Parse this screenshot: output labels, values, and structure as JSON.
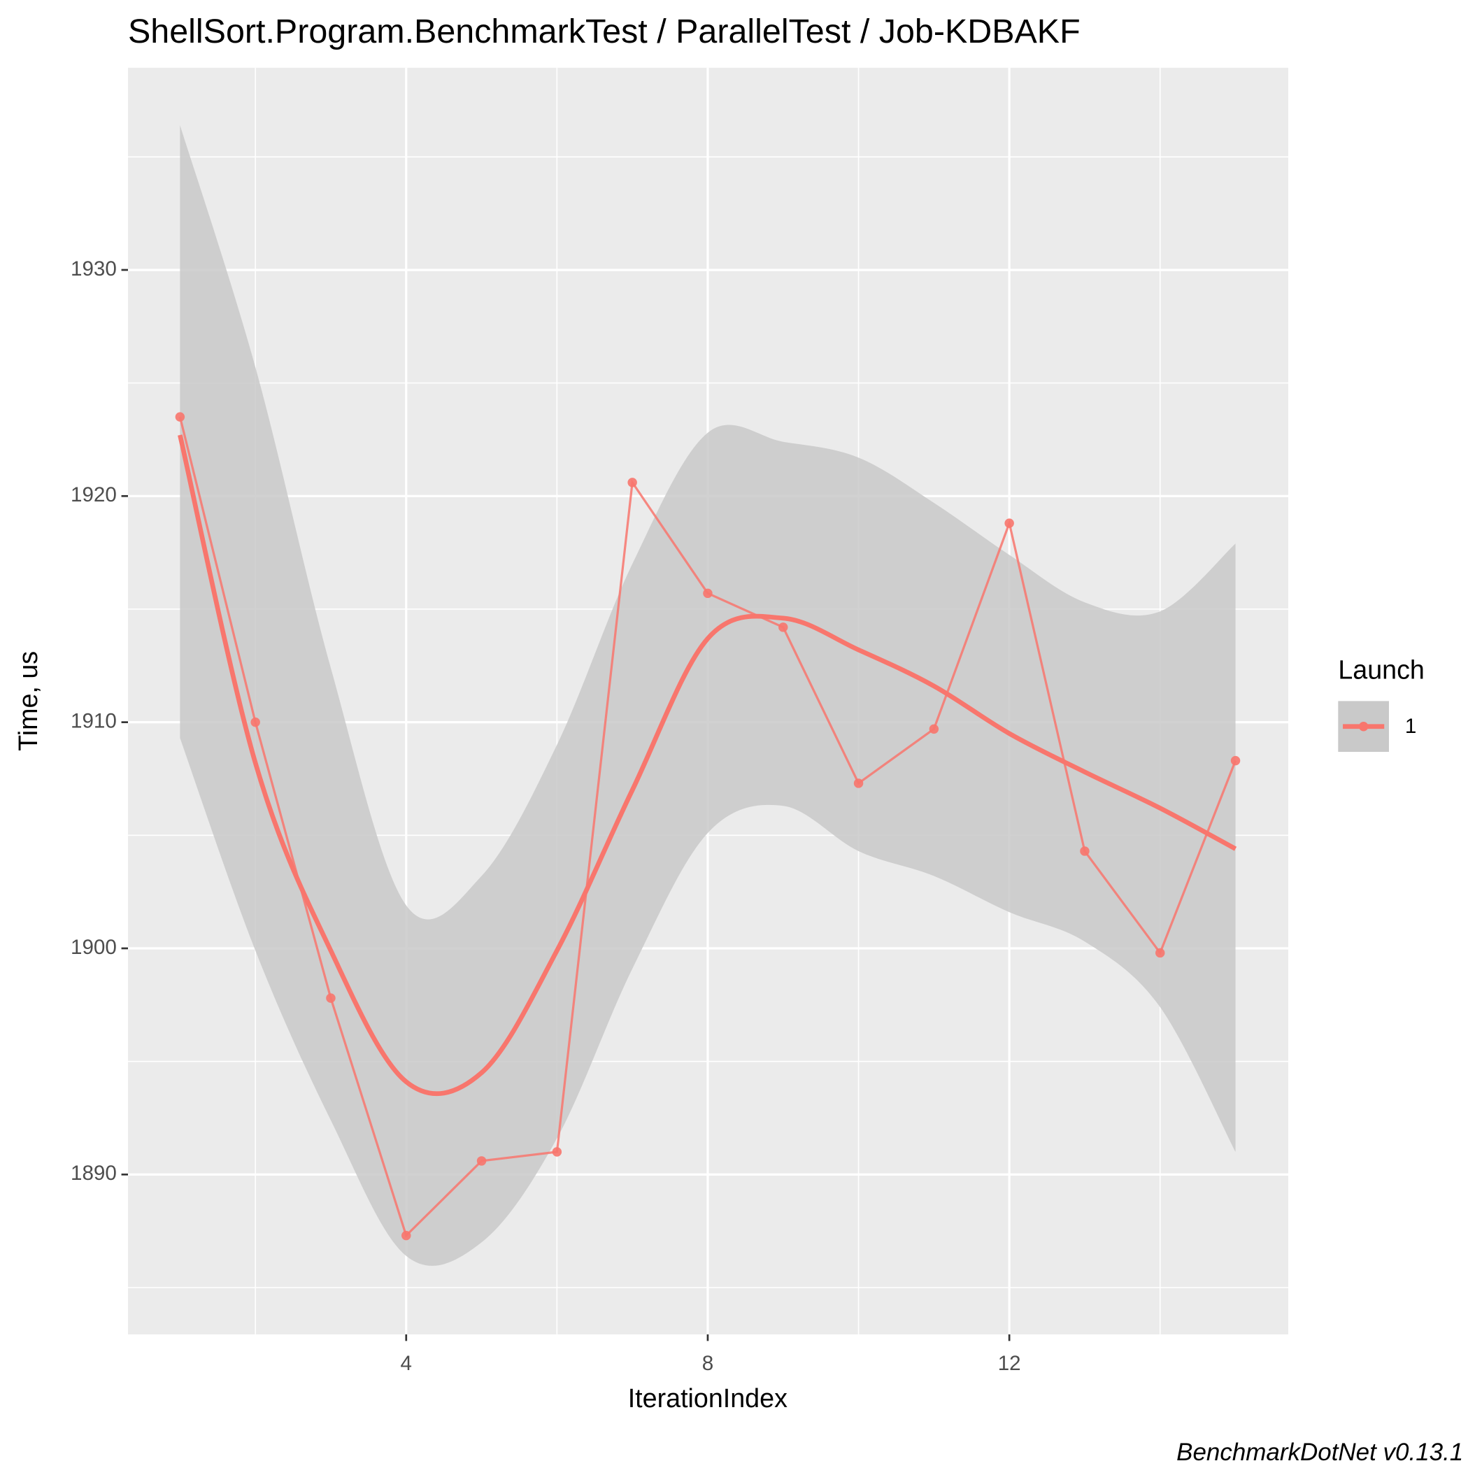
{
  "chart_data": {
    "type": "line",
    "title": "ShellSort.Program.BenchmarkTest / ParallelTest / Job-KDBAKF",
    "caption": "BenchmarkDotNet v0.13.1",
    "x_label": "IterationIndex",
    "y_label": "Time, us",
    "x": [
      1,
      2,
      3,
      4,
      5,
      6,
      7,
      8,
      9,
      10,
      11,
      12,
      13,
      14,
      15
    ],
    "series": [
      {
        "name": "1",
        "color": "#F8766D",
        "values": [
          1923.5,
          1910.0,
          1897.8,
          1887.3,
          1890.6,
          1891.0,
          1920.6,
          1915.7,
          1914.2,
          1907.3,
          1909.7,
          1918.8,
          1904.3,
          1899.8,
          1908.3
        ]
      }
    ],
    "smooth": {
      "x": [
        1,
        2,
        3,
        4,
        5,
        6,
        7,
        8,
        9,
        10,
        11,
        12,
        13,
        14,
        15
      ],
      "values": [
        1922.7,
        1908.2,
        1899.9,
        1894.1,
        1894.5,
        1899.9,
        1907.0,
        1913.7,
        1914.6,
        1913.2,
        1911.6,
        1909.5,
        1907.8,
        1906.2,
        1904.4
      ],
      "upper": [
        1936.4,
        1925.7,
        1912.4,
        1901.9,
        1903.2,
        1909.0,
        1917.0,
        1922.8,
        1922.4,
        1921.7,
        1919.7,
        1917.4,
        1915.3,
        1914.9,
        1917.9
      ],
      "lower": [
        1909.3,
        1899.9,
        1892.4,
        1886.4,
        1887.0,
        1891.6,
        1899.1,
        1905.1,
        1906.3,
        1904.3,
        1903.2,
        1901.6,
        1900.3,
        1897.4,
        1891.0
      ],
      "band_color": "#C9C9C9"
    },
    "legend_title": "Launch",
    "legend": "right",
    "xlim": [
      0.31,
      15.7
    ],
    "ylim": [
      1882.93,
      1938.94
    ],
    "xticks": [
      4,
      8,
      12
    ],
    "yticks": [
      1890,
      1900,
      1910,
      1920,
      1930
    ],
    "xminorticks": [
      2,
      6,
      10,
      14
    ],
    "yminorticks": [
      1885,
      1895,
      1905,
      1915,
      1925,
      1935
    ],
    "grid": true,
    "panel_color": "#EBEBEB"
  }
}
